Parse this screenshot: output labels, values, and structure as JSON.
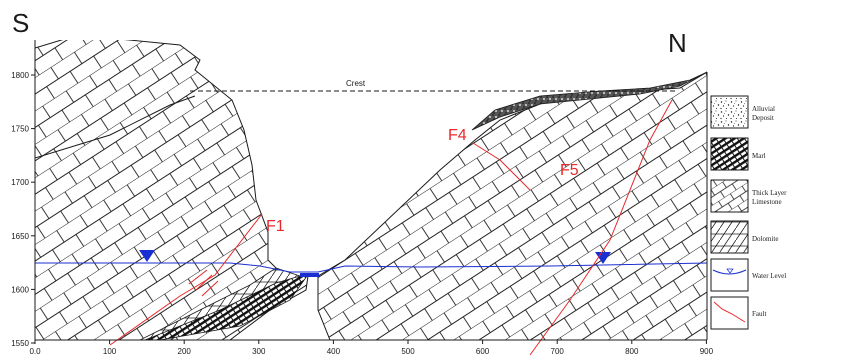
{
  "labels": {
    "south": "S",
    "north": "N",
    "crest": "Crest"
  },
  "faults": {
    "f1": "F1",
    "f4": "F4",
    "f5": "F5"
  },
  "axes": {
    "y_ticks": [
      "1800",
      "1750",
      "1700",
      "1650",
      "1600",
      "1550"
    ],
    "x_ticks": [
      "0.0",
      "100",
      "200",
      "300",
      "400",
      "500",
      "600",
      "700",
      "800",
      "900"
    ]
  },
  "legend": {
    "items": [
      {
        "label_lines": [
          "Alluvial",
          "Deposit"
        ]
      },
      {
        "label_lines": [
          "Marl"
        ]
      },
      {
        "label_lines": [
          "Thick Layer",
          "Limestone"
        ]
      },
      {
        "label_lines": [
          "Dolomite"
        ]
      },
      {
        "label_lines": [
          "Water Level"
        ]
      },
      {
        "label_lines": [
          "Fault"
        ]
      }
    ]
  },
  "colors": {
    "fault": "#e8282a",
    "water": "#1a2fd1",
    "outline": "#1a1a1a"
  }
}
